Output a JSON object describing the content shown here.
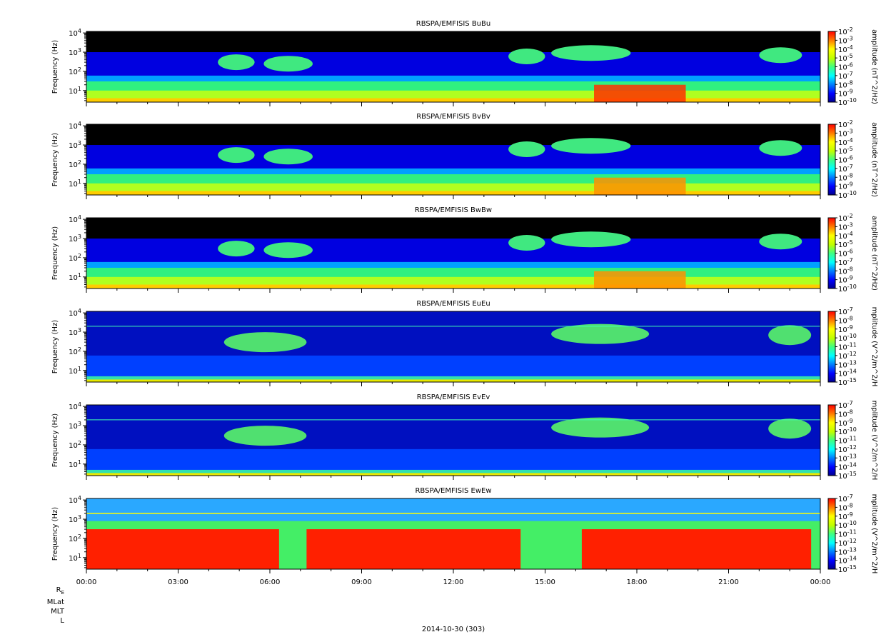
{
  "chart_data": [
    {
      "type": "heatmap",
      "title": "RBSPA/EMFISIS  BuBu",
      "ylabel": "Frequency (Hz)",
      "yscale": "log",
      "ylim": [
        2.5,
        12000
      ],
      "y_ticks": [
        "10^1",
        "10^2",
        "10^3",
        "10^4"
      ],
      "colorbar_label": "amplitude (nT^2/Hz)",
      "colorbar_ticks": [
        "10^-2",
        "10^-3",
        "10^-4",
        "10^-5",
        "10^-6",
        "10^-7",
        "10^-8",
        "10^-9",
        "10^-10"
      ],
      "kind": "magnetic"
    },
    {
      "type": "heatmap",
      "title": "RBSPA/EMFISIS  BvBv",
      "ylabel": "Frequency (Hz)",
      "yscale": "log",
      "ylim": [
        2.5,
        12000
      ],
      "y_ticks": [
        "10^1",
        "10^2",
        "10^3",
        "10^4"
      ],
      "colorbar_label": "amplitude (nT^2/Hz)",
      "colorbar_ticks": [
        "10^-2",
        "10^-3",
        "10^-4",
        "10^-5",
        "10^-6",
        "10^-7",
        "10^-8",
        "10^-9",
        "10^-10"
      ],
      "kind": "magnetic"
    },
    {
      "type": "heatmap",
      "title": "RBSPA/EMFISIS  BwBw",
      "ylabel": "Frequency (Hz)",
      "yscale": "log",
      "ylim": [
        2.5,
        12000
      ],
      "y_ticks": [
        "10^1",
        "10^2",
        "10^3",
        "10^4"
      ],
      "colorbar_label": "amplitude (nT^2/Hz)",
      "colorbar_ticks": [
        "10^-2",
        "10^-3",
        "10^-4",
        "10^-5",
        "10^-6",
        "10^-7",
        "10^-8",
        "10^-9",
        "10^-10"
      ],
      "kind": "magnetic"
    },
    {
      "type": "heatmap",
      "title": "RBSPA/EMFISIS  EuEu",
      "ylabel": "Frequency (Hz)",
      "yscale": "log",
      "ylim": [
        2.5,
        12000
      ],
      "y_ticks": [
        "10^1",
        "10^2",
        "10^3",
        "10^4"
      ],
      "colorbar_label": "mplitude (V^2/m^2/H",
      "colorbar_ticks": [
        "10^-7",
        "10^-8",
        "10^-9",
        "10^-10",
        "10^-11",
        "10^-12",
        "10^-13",
        "10^-14",
        "10^-15"
      ],
      "kind": "electric"
    },
    {
      "type": "heatmap",
      "title": "RBSPA/EMFISIS  EvEv",
      "ylabel": "Frequency (Hz)",
      "yscale": "log",
      "ylim": [
        2.5,
        12000
      ],
      "y_ticks": [
        "10^1",
        "10^2",
        "10^3",
        "10^4"
      ],
      "colorbar_label": "mplitude (V^2/m^2/H",
      "colorbar_ticks": [
        "10^-7",
        "10^-8",
        "10^-9",
        "10^-10",
        "10^-11",
        "10^-12",
        "10^-13",
        "10^-14",
        "10^-15"
      ],
      "kind": "electric"
    },
    {
      "type": "heatmap",
      "title": "RBSPA/EMFISIS  EwEw",
      "ylabel": "Frequency (Hz)",
      "yscale": "log",
      "ylim": [
        2.5,
        12000
      ],
      "y_ticks": [
        "10^1",
        "10^2",
        "10^3",
        "10^4"
      ],
      "colorbar_label": "mplitude (V^2/m^2/H",
      "colorbar_ticks": [
        "10^-7",
        "10^-8",
        "10^-9",
        "10^-10",
        "10^-11",
        "10^-12",
        "10^-13",
        "10^-14",
        "10^-15"
      ],
      "kind": "ew"
    }
  ],
  "x_axis": {
    "tick_labels": [
      "00:00",
      "03:00",
      "06:00",
      "09:00",
      "12:00",
      "15:00",
      "18:00",
      "21:00",
      "00:00"
    ],
    "range_hours": [
      0,
      24
    ]
  },
  "ephemeris_labels": [
    "R_E",
    "MLat",
    "MLT",
    "L"
  ],
  "date_label": "2014-10-30 (303)"
}
